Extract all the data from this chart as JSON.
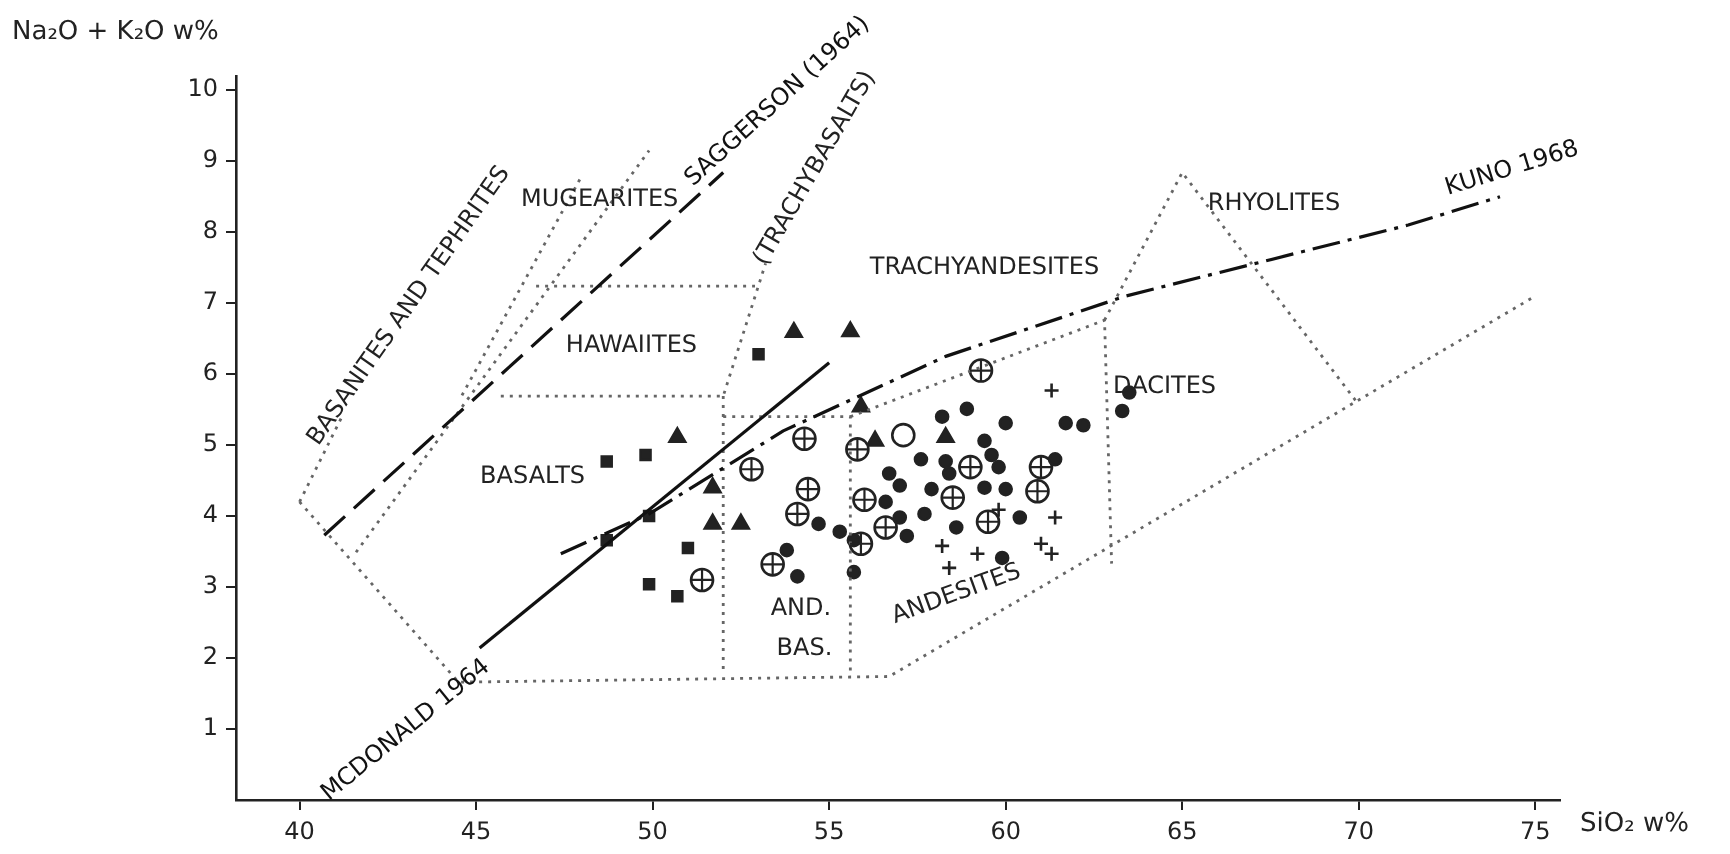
{
  "chart_data": {
    "type": "scatter",
    "xlabel": "SiO₂ w%",
    "ylabel": "Na₂O + K₂O w%",
    "xlim": [
      38.2,
      75.7
    ],
    "ylim": [
      0,
      10.2
    ],
    "xticks": [
      40,
      45,
      50,
      55,
      60,
      65,
      70,
      75
    ],
    "yticks": [
      1,
      2,
      3,
      4,
      5,
      6,
      7,
      8,
      9,
      10
    ],
    "legend": false,
    "series": [
      {
        "marker": "square",
        "color": "#222222",
        "x": [
          48.7,
          49.8,
          53.0,
          49.9,
          48.7,
          51.0,
          49.9,
          50.7
        ],
        "values": [
          4.77,
          4.86,
          6.28,
          4.0,
          3.66,
          3.55,
          3.04,
          2.87
        ]
      },
      {
        "marker": "triangle",
        "color": "#222222",
        "x": [
          50.7,
          51.7,
          51.7,
          52.5,
          54.0,
          55.6,
          55.9,
          56.3,
          58.3
        ],
        "values": [
          5.11,
          4.4,
          3.89,
          3.89,
          6.59,
          6.6,
          5.54,
          5.06,
          5.11
        ]
      },
      {
        "marker": "circle",
        "color": "#222222",
        "x": [
          52.8,
          51.4,
          53.4,
          54.3,
          54.4,
          54.1,
          55.8,
          59.3,
          56.0,
          55.9,
          56.6,
          58.5,
          59.0,
          59.5,
          60.9,
          61.0
        ],
        "values": [
          4.66,
          3.1,
          3.32,
          5.09,
          4.38,
          4.03,
          4.94,
          6.05,
          4.23,
          3.61,
          3.84,
          4.26,
          4.69,
          3.92,
          4.35,
          4.69
        ]
      },
      {
        "marker": "circle",
        "color": "#222222",
        "x": [
          57.1
        ],
        "values": [
          5.14
        ]
      },
      {
        "marker": "circle",
        "color": "#222222",
        "x": [
          58.2,
          58.9,
          60.0,
          61.7,
          62.2,
          63.3,
          63.5,
          59.4,
          59.6,
          59.8,
          61.4,
          57.6,
          58.3,
          56.7,
          57.0,
          58.4,
          57.9,
          59.4,
          60.0,
          56.6,
          57.0,
          57.7,
          58.6,
          60.4,
          54.7,
          55.3,
          55.7,
          57.2,
          53.8,
          54.1,
          59.9,
          55.7
        ],
        "values": [
          5.4,
          5.51,
          5.31,
          5.31,
          5.28,
          5.48,
          5.74,
          5.06,
          4.86,
          4.69,
          4.8,
          4.8,
          4.77,
          4.6,
          4.43,
          4.6,
          4.38,
          4.4,
          4.38,
          4.2,
          3.98,
          4.03,
          3.84,
          3.98,
          3.89,
          3.78,
          3.66,
          3.72,
          3.52,
          3.15,
          3.41,
          3.21
        ]
      },
      {
        "marker": "cross",
        "color": "#222222",
        "x": [
          61.3,
          59.8,
          61.4,
          58.2,
          59.2,
          61.0,
          61.3,
          58.4
        ],
        "values": [
          5.77,
          4.09,
          3.98,
          3.58,
          3.47,
          3.61,
          3.47,
          3.27
        ]
      },
      {
        "type": "line",
        "marker": "none",
        "line_style": "dotted",
        "color": "#666666",
        "x": [
          40.0,
          44.5,
          56.7,
          75.0
        ],
        "values": [
          4.2,
          1.66,
          1.74,
          7.1
        ]
      },
      {
        "type": "line",
        "marker": "none",
        "line_style": "dotted",
        "color": "#666666",
        "x": [
          40.0,
          41.2
        ],
        "values": [
          4.2,
          5.4
        ]
      },
      {
        "type": "line",
        "marker": "none",
        "line_style": "dotted",
        "color": "#666666",
        "x": [
          41.6,
          49.9
        ],
        "values": [
          3.49,
          9.15
        ]
      },
      {
        "type": "line",
        "marker": "none",
        "line_style": "dotted",
        "color": "#666666",
        "x": [
          44.6,
          48.0
        ],
        "values": [
          5.7,
          8.8
        ]
      },
      {
        "type": "line",
        "marker": "none",
        "line_style": "dotted",
        "color": "#666666",
        "x": [
          46.7,
          52.9
        ],
        "values": [
          7.24,
          7.24
        ]
      },
      {
        "type": "line",
        "marker": "none",
        "line_style": "dotted",
        "color": "#666666",
        "x": [
          45.7,
          52.0,
          53.2
        ],
        "values": [
          5.69,
          5.69,
          7.56
        ]
      },
      {
        "type": "line",
        "marker": "none",
        "line_style": "dotted",
        "color": "#666666",
        "x": [
          52.0,
          52.0
        ],
        "values": [
          5.69,
          1.82
        ]
      },
      {
        "type": "line",
        "marker": "none",
        "line_style": "dotted",
        "color": "#666666",
        "x": [
          52.0,
          55.6,
          55.6
        ],
        "values": [
          5.4,
          5.4,
          1.74
        ]
      },
      {
        "type": "line",
        "marker": "none",
        "line_style": "dotted",
        "color": "#666666",
        "x": [
          55.6,
          62.8,
          63.0
        ],
        "values": [
          5.4,
          6.76,
          3.33
        ]
      },
      {
        "type": "line",
        "marker": "none",
        "line_style": "dotted",
        "color": "#666666",
        "x": [
          62.8,
          65.0,
          70.0
        ],
        "values": [
          6.76,
          8.84,
          5.57
        ]
      },
      {
        "type": "line",
        "name": "SAGGERSON (1964)",
        "marker": "none",
        "line_style": "dashed",
        "color": "#111111",
        "x": [
          40.7,
          52.0
        ],
        "values": [
          3.73,
          8.84
        ]
      },
      {
        "type": "line",
        "name": "MCDONALD 1964",
        "marker": "none",
        "line_style": "solid",
        "color": "#111111",
        "x": [
          45.1,
          55.0
        ],
        "values": [
          2.14,
          6.16
        ]
      },
      {
        "type": "line",
        "name": "KUNO 1968",
        "marker": "none",
        "line_style": "dashdot",
        "color": "#111111",
        "x": [
          47.4,
          49.9,
          53.7,
          58.3,
          63.4,
          71.4,
          74.0
        ],
        "values": [
          3.47,
          4.03,
          5.2,
          6.25,
          7.1,
          8.1,
          8.5
        ]
      }
    ],
    "annotations": [
      "BASANITES AND TEPHRITES",
      "MUGEARITES",
      "(TRACHYBASALTS)",
      "HAWAIITES",
      "TRACHYANDESITES",
      "BASALTS",
      "AND.",
      "BAS.",
      "ANDESITES",
      "DACITES",
      "RHYOLITES"
    ]
  }
}
